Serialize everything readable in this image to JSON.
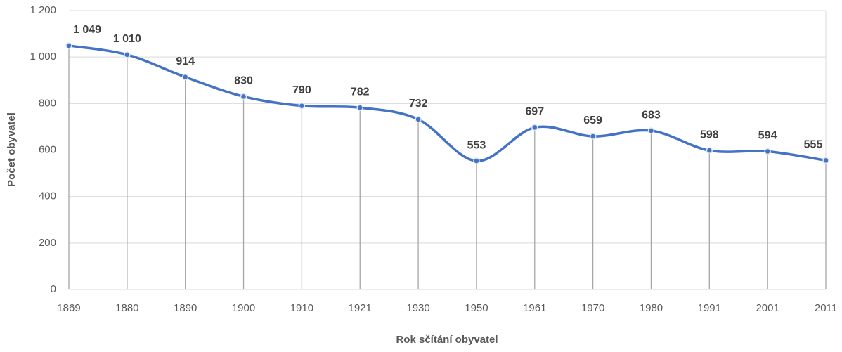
{
  "chart_data": {
    "type": "line",
    "x_label": "Rok sčítání obyvatel",
    "y_label": "Počet obyvatel",
    "categories": [
      "1869",
      "1880",
      "1890",
      "1900",
      "1910",
      "1921",
      "1930",
      "1950",
      "1961",
      "1970",
      "1980",
      "1991",
      "2001",
      "2011"
    ],
    "values": [
      1049,
      1010,
      914,
      830,
      790,
      782,
      732,
      553,
      697,
      659,
      683,
      598,
      594,
      555
    ],
    "value_labels": [
      "1 049",
      "1 010",
      "914",
      "830",
      "790",
      "782",
      "732",
      "553",
      "697",
      "659",
      "683",
      "598",
      "594",
      "555"
    ],
    "color": "#4472c4",
    "drop_lines": true,
    "ylim": [
      0,
      1200
    ],
    "yticks": [
      0,
      200,
      400,
      600,
      800,
      {
        "value": 1000,
        "label": "1 000"
      },
      {
        "value": 1200,
        "label": "1 200"
      }
    ],
    "grid": true
  }
}
